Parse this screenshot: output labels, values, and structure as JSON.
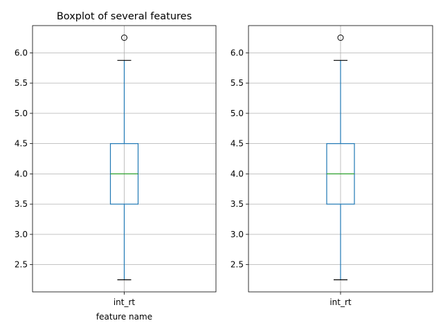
{
  "chart_data": [
    {
      "type": "boxplot",
      "title": "Boxplot of several features",
      "xlabel": "feature name",
      "ylabel": "",
      "categories": [
        "int_rt"
      ],
      "boxes": [
        {
          "category": "int_rt",
          "whisker_low": 2.25,
          "q1": 3.5,
          "median": 4.0,
          "q3": 4.5,
          "whisker_high": 5.875,
          "outliers": [
            6.25
          ]
        }
      ],
      "ylim": [
        2.05,
        6.45
      ],
      "yticks": [
        "2.5",
        "3.0",
        "3.5",
        "4.0",
        "4.5",
        "5.0",
        "5.5",
        "6.0"
      ],
      "grid": true
    },
    {
      "type": "boxplot",
      "title": "",
      "xlabel": "",
      "ylabel": "",
      "categories": [
        "int_rt"
      ],
      "boxes": [
        {
          "category": "int_rt",
          "whisker_low": 2.25,
          "q1": 3.5,
          "median": 4.0,
          "q3": 4.5,
          "whisker_high": 5.875,
          "outliers": [
            6.25
          ]
        }
      ],
      "ylim": [
        2.05,
        6.45
      ],
      "yticks": [
        "2.5",
        "3.0",
        "3.5",
        "4.0",
        "4.5",
        "5.0",
        "5.5",
        "6.0"
      ],
      "grid": true
    }
  ],
  "colors": {
    "box": "#1f77b4",
    "median": "#2ca02c",
    "grid": "#b0b0b0",
    "axes": "#000000",
    "background": "#ffffff"
  }
}
